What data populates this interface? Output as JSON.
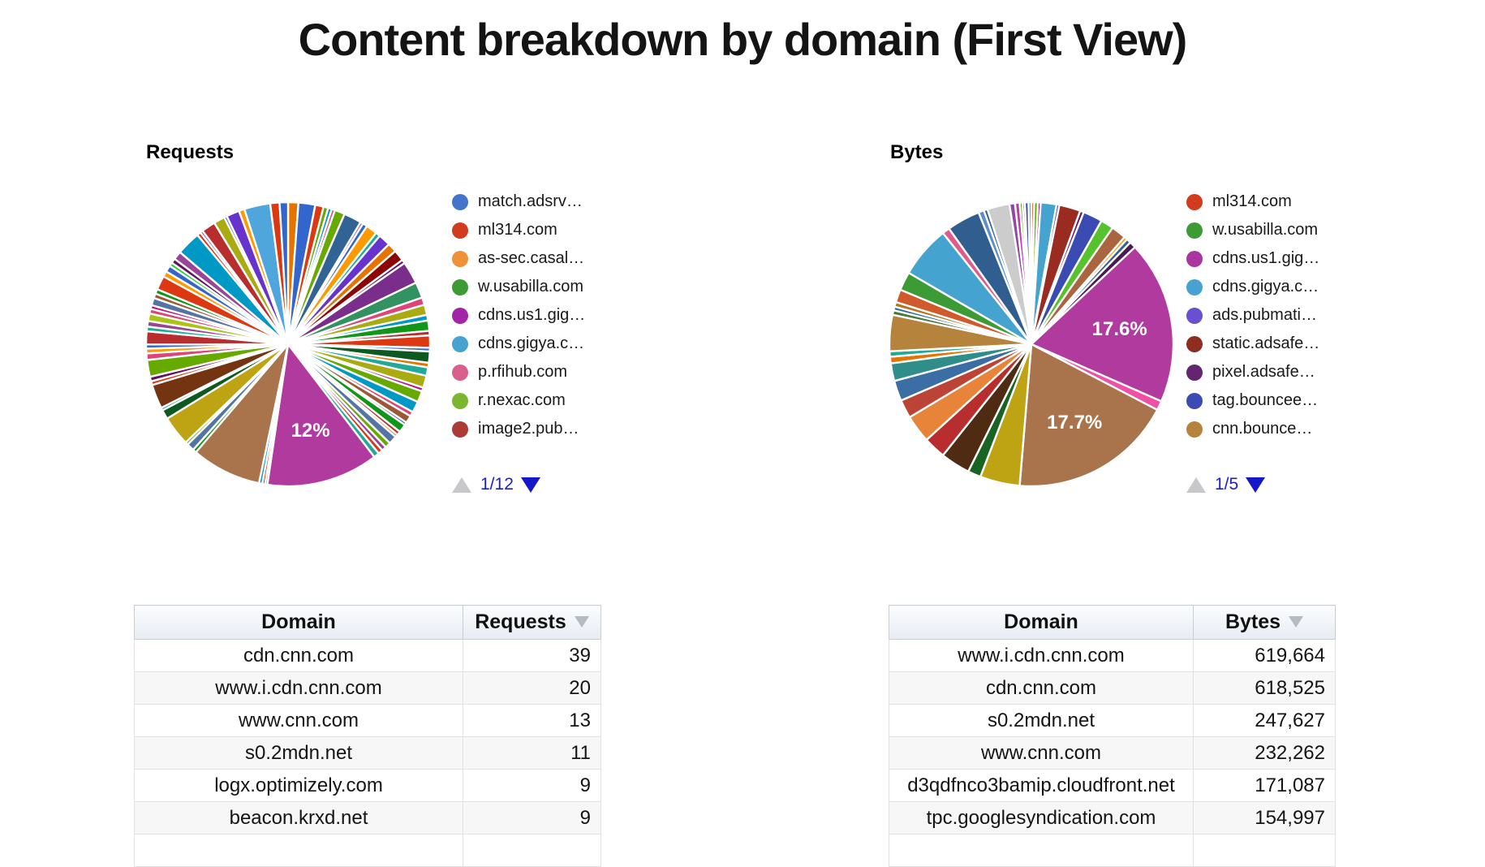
{
  "title": "Content breakdown by domain (First View)",
  "chart_data": [
    {
      "type": "pie",
      "title": "Requests",
      "legend_position": "right",
      "legend": [
        {
          "color": "#4374C9",
          "label": "match.adsrv…"
        },
        {
          "color": "#D33B1E",
          "label": "ml314.com"
        },
        {
          "color": "#EF9139",
          "label": "as-sec.casal…"
        },
        {
          "color": "#3D9B35",
          "label": "w.usabilla.com"
        },
        {
          "color": "#A224A8",
          "label": "cdns.us1.gig…"
        },
        {
          "color": "#47A2CF",
          "label": "cdns.gigya.c…"
        },
        {
          "color": "#D95F8C",
          "label": "p.rfihub.com"
        },
        {
          "color": "#7CB52F",
          "label": "r.nexac.com"
        },
        {
          "color": "#AC3B35",
          "label": "image2.pub…"
        }
      ],
      "pagination": {
        "page": "1/12",
        "up_icon": "▲",
        "down_icon": "▼"
      },
      "slices": [
        [
          "#E67300",
          1.1
        ],
        [
          "#3366CC",
          1.8
        ],
        [
          "#DC3912",
          0.9
        ],
        [
          "#66AA00",
          0.5
        ],
        [
          "#0099C6",
          0.4
        ],
        [
          "#DD4477",
          0.35
        ],
        [
          "#66AA00",
          1.1
        ],
        [
          "#316395",
          1.9
        ],
        [
          "#994499",
          0.3
        ],
        [
          "#3366CC",
          0.5
        ],
        [
          "#FF9900",
          1.2
        ],
        [
          "#22AA99",
          0.5
        ],
        [
          "#6633CC",
          1.3
        ],
        [
          "#E67300",
          1.0
        ],
        [
          "#8B0707",
          1.2
        ],
        [
          "#651067",
          0.4
        ],
        [
          "#7B2D8B",
          2.4
        ],
        [
          "#329262",
          1.7
        ],
        [
          "#DD4477",
          0.8
        ],
        [
          "#AAAA11",
          1.1
        ],
        [
          "#0099C6",
          0.6
        ],
        [
          "#109618",
          1.1
        ],
        [
          "#B82E2E",
          0.5
        ],
        [
          "#DC3912",
          1.3
        ],
        [
          "#3366CC",
          0.4
        ],
        [
          "#0C5922",
          1.2
        ],
        [
          "#E67300",
          0.5
        ],
        [
          "#22AA99",
          0.9
        ],
        [
          "#AAAA11",
          1.3
        ],
        [
          "#B91383",
          0.4
        ],
        [
          "#66AA00",
          1.2
        ],
        [
          "#0099C6",
          1.2
        ],
        [
          "#DD4477",
          0.5
        ],
        [
          "#9C5935",
          0.8
        ],
        [
          "#3B3EAC",
          0.3
        ],
        [
          "#109618",
          0.9
        ],
        [
          "#B82E2E",
          0.4
        ],
        [
          "#E67300",
          0.3
        ],
        [
          "#5574A6",
          0.9
        ],
        [
          "#66AA00",
          0.6
        ],
        [
          "#994499",
          0.5
        ],
        [
          "#DC3912",
          0.5
        ],
        [
          "#22AA99",
          0.6
        ],
        [
          "#B03A9E",
          12.0,
          "12%"
        ],
        [
          "#3366CC",
          0.25
        ],
        [
          "#DC3912",
          0.3
        ],
        [
          "#0099C6",
          0.35
        ],
        [
          "#A9744B",
          7.5
        ],
        [
          "#109618",
          0.4
        ],
        [
          "#5574A6",
          0.8
        ],
        [
          "#66AA00",
          0.3
        ],
        [
          "#BEA413",
          3.2
        ],
        [
          "#0C5922",
          1.0
        ],
        [
          "#22AA99",
          0.3
        ],
        [
          "#743411",
          2.6
        ],
        [
          "#DC3912",
          0.4
        ],
        [
          "#651067",
          0.5
        ],
        [
          "#66AA00",
          1.8
        ],
        [
          "#DD4477",
          0.7
        ],
        [
          "#FF9900",
          0.5
        ],
        [
          "#3366CC",
          0.45
        ],
        [
          "#B82E2E",
          1.4
        ],
        [
          "#22AA99",
          0.5
        ],
        [
          "#994499",
          0.6
        ],
        [
          "#A9C413",
          0.8
        ],
        [
          "#DD4477",
          0.5
        ],
        [
          "#B91383",
          0.4
        ],
        [
          "#5574A6",
          0.8
        ],
        [
          "#9C5935",
          0.5
        ],
        [
          "#109618",
          0.5
        ],
        [
          "#DC3912",
          1.5
        ],
        [
          "#FF9900",
          0.6
        ],
        [
          "#3366CC",
          0.7
        ],
        [
          "#16D620",
          0.4
        ],
        [
          "#651067",
          0.5
        ],
        [
          "#994499",
          0.9
        ],
        [
          "#0099C6",
          2.6
        ],
        [
          "#DC3912",
          0.4
        ],
        [
          "#994499",
          0.3
        ],
        [
          "#B82E2E",
          1.5
        ],
        [
          "#AAAA11",
          1.2
        ],
        [
          "#3366CC",
          0.3
        ],
        [
          "#6633CC",
          1.4
        ],
        [
          "#FF9900",
          0.6
        ],
        [
          "#4EA6DC",
          2.8
        ],
        [
          "#DC3912",
          1.0
        ],
        [
          "#3366CC",
          0.9
        ]
      ]
    },
    {
      "type": "pie",
      "title": "Bytes",
      "legend_position": "right",
      "legend": [
        {
          "color": "#D33B1E",
          "label": "ml314.com"
        },
        {
          "color": "#3D9B35",
          "label": "w.usabilla.com"
        },
        {
          "color": "#A935A1",
          "label": "cdns.us1.gig…"
        },
        {
          "color": "#47A2CF",
          "label": "cdns.gigya.c…"
        },
        {
          "color": "#6A4FD0",
          "label": "ads.pubmati…"
        },
        {
          "color": "#8F2D22",
          "label": "static.adsafe…"
        },
        {
          "color": "#63256E",
          "label": "pixel.adsafe…"
        },
        {
          "color": "#3B4BB4",
          "label": "tag.bouncee…"
        },
        {
          "color": "#B5833B",
          "label": "cnn.bounce…"
        }
      ],
      "pagination": {
        "page": "1/5",
        "up_icon": "▲",
        "down_icon": "▼"
      },
      "slices": [
        [
          "#DC3912",
          0.3
        ],
        [
          "#66AA00",
          0.4
        ],
        [
          "#990099",
          0.3
        ],
        [
          "#45A3CF",
          1.7
        ],
        [
          "#3B3EAC",
          0.3
        ],
        [
          "#9A2B21",
          2.3
        ],
        [
          "#651067",
          0.4
        ],
        [
          "#3B4BB4",
          2.1
        ],
        [
          "#56C22D",
          1.4
        ],
        [
          "#A9653F",
          1.6
        ],
        [
          "#FF9900",
          0.35
        ],
        [
          "#316395",
          0.5
        ],
        [
          "#4A1A57",
          0.7
        ],
        [
          "#B03A9E",
          17.6,
          "17.6%"
        ],
        [
          "#EF4FA6",
          1.0
        ],
        [
          "#A9744B",
          17.7,
          "17.7%"
        ],
        [
          "#BEA413",
          4.3
        ],
        [
          "#176423",
          1.4
        ],
        [
          "#4F2B14",
          3.2
        ],
        [
          "#B82E2E",
          2.4
        ],
        [
          "#E8833A",
          3.0
        ],
        [
          "#BC4437",
          2.0
        ],
        [
          "#3A6EA5",
          2.2
        ],
        [
          "#2F8E89",
          1.9
        ],
        [
          "#E67300",
          0.7
        ],
        [
          "#22AA99",
          0.6
        ],
        [
          "#B5833B",
          3.9
        ],
        [
          "#447A3C",
          0.5
        ],
        [
          "#2F6B8F",
          0.4
        ],
        [
          "#B77322",
          0.5
        ],
        [
          "#D05A2C",
          1.4
        ],
        [
          "#3D9B35",
          2.0
        ],
        [
          "#45A3CF",
          5.6
        ],
        [
          "#E05A8F",
          0.8
        ],
        [
          "#2F5E8F",
          3.6
        ],
        [
          "#5B8FC6",
          0.6
        ],
        [
          "#316395",
          0.4
        ],
        [
          "#CCCCCC",
          2.4
        ],
        [
          "#9146A8",
          0.6
        ],
        [
          "#C03BB0",
          0.5
        ],
        [
          "#66AA00",
          0.3
        ],
        [
          "#DC3912",
          0.25
        ],
        [
          "#3B4BB4",
          0.4
        ],
        [
          "#22AA99",
          0.3
        ]
      ]
    }
  ],
  "tables": [
    {
      "headers": [
        "Domain",
        "Requests"
      ],
      "sort_column": 1,
      "sort_dir": "desc",
      "rows": [
        [
          "cdn.cnn.com",
          "39"
        ],
        [
          "www.i.cdn.cnn.com",
          "20"
        ],
        [
          "www.cnn.com",
          "13"
        ],
        [
          "s0.2mdn.net",
          "11"
        ],
        [
          "logx.optimizely.com",
          "9"
        ],
        [
          "beacon.krxd.net",
          "9"
        ]
      ]
    },
    {
      "headers": [
        "Domain",
        "Bytes"
      ],
      "sort_column": 1,
      "sort_dir": "desc",
      "rows": [
        [
          "www.i.cdn.cnn.com",
          "619,664"
        ],
        [
          "cdn.cnn.com",
          "618,525"
        ],
        [
          "s0.2mdn.net",
          "247,627"
        ],
        [
          "www.cnn.com",
          "232,262"
        ],
        [
          "d3qdfnco3bamip.cloudfront.net",
          "171,087"
        ],
        [
          "tpc.googlesyndication.com",
          "154,997"
        ]
      ]
    }
  ]
}
